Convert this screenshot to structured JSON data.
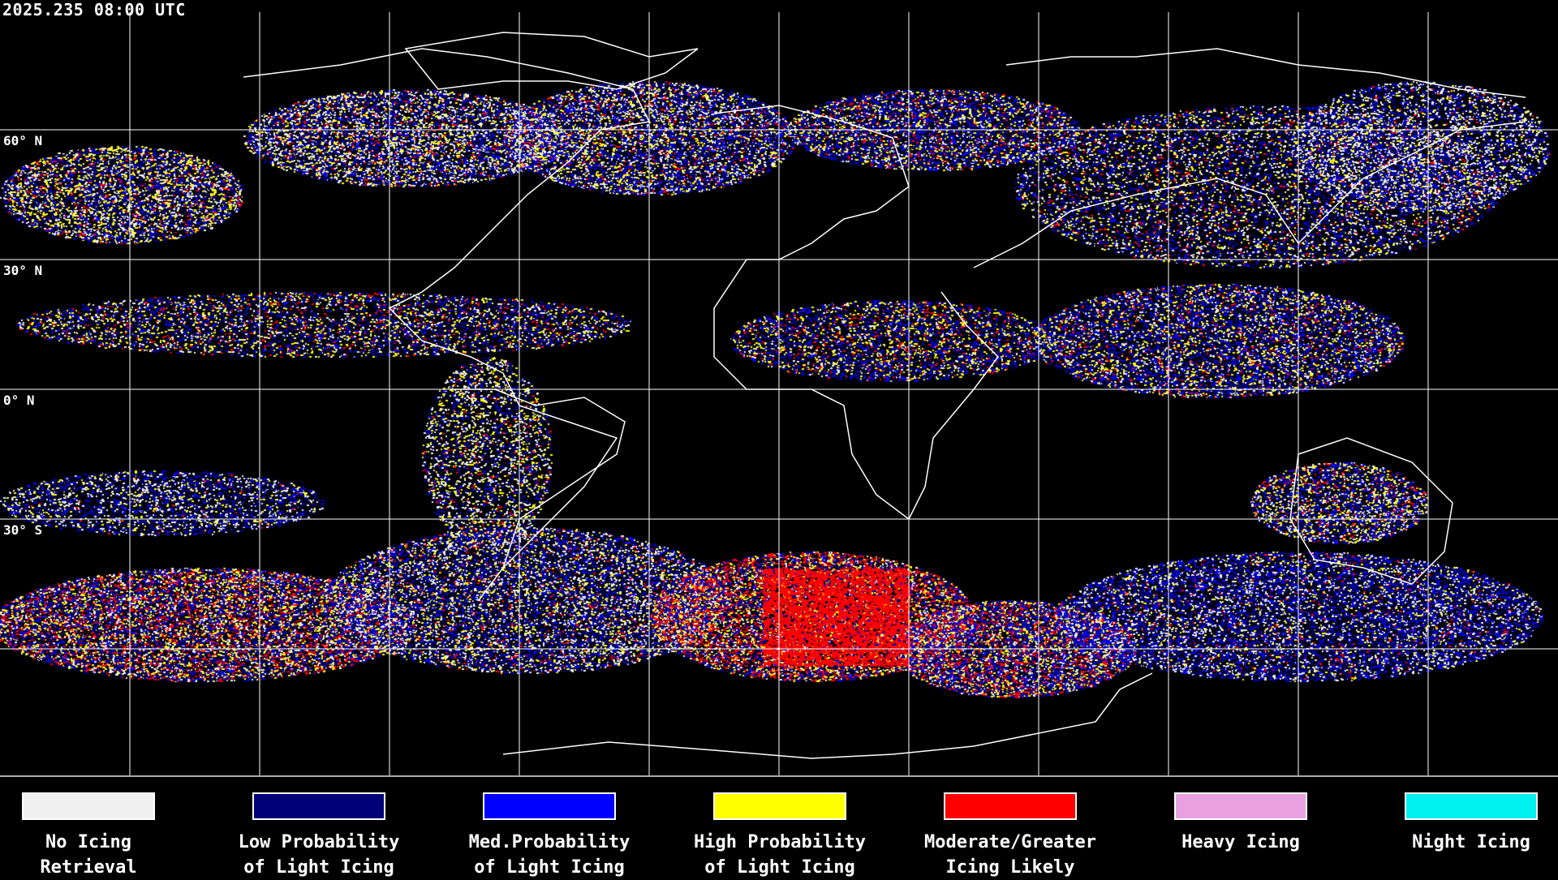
{
  "header": {
    "timestamp": "2025.235 08:00 UTC"
  },
  "map": {
    "latitude_labels": [
      "60° N",
      "30° N",
      "0° N",
      "30° S"
    ],
    "grid": true,
    "projection": "equirectangular"
  },
  "legend": [
    {
      "line1": "No Icing",
      "line2": "Retrieval",
      "color": "#f0f0f0"
    },
    {
      "line1": "Low Probability",
      "line2": "of Light Icing",
      "color": "#000078"
    },
    {
      "line1": "Med.Probability",
      "line2": "of Light Icing",
      "color": "#0000ff"
    },
    {
      "line1": "High Probability",
      "line2": "of Light Icing",
      "color": "#ffff00"
    },
    {
      "line1": "Moderate/Greater",
      "line2": "Icing Likely",
      "color": "#ff0000"
    },
    {
      "line1": "Heavy Icing",
      "line2": "",
      "color": "#e8a0e0"
    },
    {
      "line1": "Night Icing",
      "line2": "",
      "color": "#00f0f0"
    }
  ]
}
